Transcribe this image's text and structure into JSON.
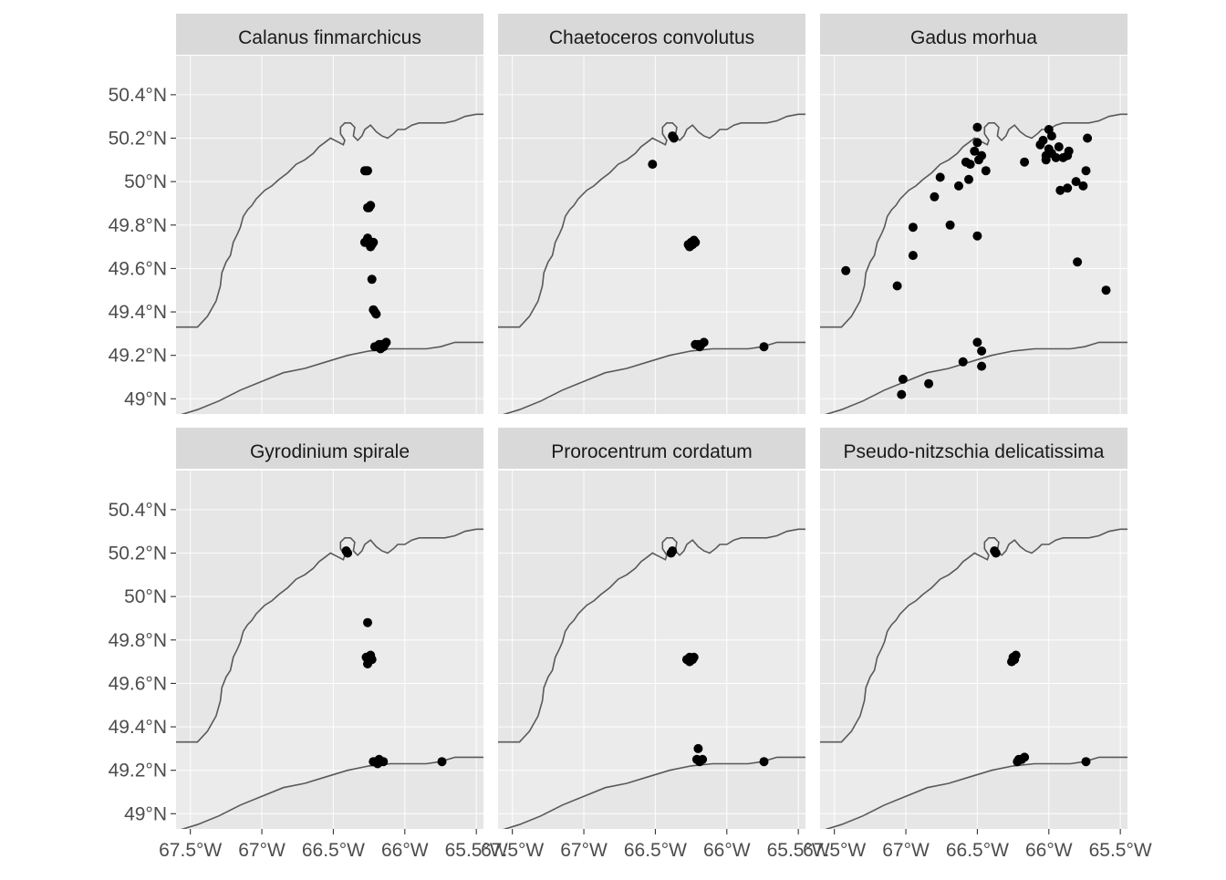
{
  "chart_data": {
    "type": "scatter",
    "title": "",
    "xlabel": "",
    "ylabel": "",
    "xlim": [
      -67.6,
      -65.45
    ],
    "ylim": [
      48.93,
      50.58
    ],
    "grid": true,
    "x_ticks": [
      {
        "value": -67.5,
        "label": "67.5°W"
      },
      {
        "value": -67.0,
        "label": "67°W"
      },
      {
        "value": -66.5,
        "label": "66.5°W"
      },
      {
        "value": -66.0,
        "label": "66°W"
      },
      {
        "value": -65.5,
        "label": "65.5°W"
      }
    ],
    "y_ticks": [
      {
        "value": 49.0,
        "label": "49°N"
      },
      {
        "value": 49.2,
        "label": "49.2°N"
      },
      {
        "value": 49.4,
        "label": "49.4°N"
      },
      {
        "value": 49.6,
        "label": "49.6°N"
      },
      {
        "value": 49.8,
        "label": "49.8°N"
      },
      {
        "value": 50.0,
        "label": "50°N"
      },
      {
        "value": 50.2,
        "label": "50.2°N"
      },
      {
        "value": 50.4,
        "label": "50.4°N"
      }
    ],
    "colors": {
      "panel_bg": "#ebebeb",
      "land": "#e6e6e6",
      "coast": "#595959",
      "strip_bg": "#d9d9d9",
      "point": "#000000",
      "grid": "#ffffff"
    },
    "coastlines": {
      "north": [
        [
          -67.6,
          49.33
        ],
        [
          -67.45,
          49.33
        ],
        [
          -67.38,
          49.38
        ],
        [
          -67.32,
          49.45
        ],
        [
          -67.29,
          49.52
        ],
        [
          -67.28,
          49.58
        ],
        [
          -67.25,
          49.63
        ],
        [
          -67.22,
          49.66
        ],
        [
          -67.2,
          49.72
        ],
        [
          -67.17,
          49.76
        ],
        [
          -67.15,
          49.79
        ],
        [
          -67.13,
          49.84
        ],
        [
          -67.1,
          49.87
        ],
        [
          -67.07,
          49.89
        ],
        [
          -67.04,
          49.92
        ],
        [
          -66.98,
          49.96
        ],
        [
          -66.93,
          49.98
        ],
        [
          -66.88,
          50.01
        ],
        [
          -66.82,
          50.04
        ],
        [
          -66.76,
          50.08
        ],
        [
          -66.7,
          50.1
        ],
        [
          -66.64,
          50.13
        ],
        [
          -66.6,
          50.16
        ],
        [
          -66.56,
          50.18
        ],
        [
          -66.52,
          50.2
        ],
        [
          -66.49,
          50.19
        ],
        [
          -66.46,
          50.18
        ],
        [
          -66.43,
          50.17
        ],
        [
          -66.42,
          50.19
        ],
        [
          -66.45,
          50.22
        ],
        [
          -66.45,
          50.25
        ],
        [
          -66.42,
          50.27
        ],
        [
          -66.38,
          50.27
        ],
        [
          -66.35,
          50.25
        ],
        [
          -66.36,
          50.21
        ],
        [
          -66.33,
          50.19
        ],
        [
          -66.3,
          50.21
        ],
        [
          -66.28,
          50.24
        ],
        [
          -66.24,
          50.26
        ],
        [
          -66.2,
          50.23
        ],
        [
          -66.16,
          50.21
        ],
        [
          -66.12,
          50.2
        ],
        [
          -66.08,
          50.22
        ],
        [
          -66.05,
          50.24
        ],
        [
          -66.0,
          50.24
        ],
        [
          -65.95,
          50.26
        ],
        [
          -65.9,
          50.27
        ],
        [
          -65.82,
          50.27
        ],
        [
          -65.72,
          50.27
        ],
        [
          -65.65,
          50.28
        ],
        [
          -65.58,
          50.3
        ],
        [
          -65.5,
          50.31
        ],
        [
          -65.45,
          50.31
        ]
      ],
      "south": [
        [
          -67.6,
          48.92
        ],
        [
          -67.45,
          48.95
        ],
        [
          -67.3,
          48.99
        ],
        [
          -67.15,
          49.04
        ],
        [
          -67.0,
          49.08
        ],
        [
          -66.85,
          49.12
        ],
        [
          -66.7,
          49.14
        ],
        [
          -66.55,
          49.17
        ],
        [
          -66.4,
          49.2
        ],
        [
          -66.25,
          49.22
        ],
        [
          -66.1,
          49.23
        ],
        [
          -65.95,
          49.23
        ],
        [
          -65.85,
          49.23
        ],
        [
          -65.75,
          49.24
        ],
        [
          -65.65,
          49.26
        ],
        [
          -65.55,
          49.26
        ],
        [
          -65.45,
          49.26
        ]
      ]
    },
    "facets": [
      {
        "name": "Calanus finmarchicus",
        "points": [
          [
            -66.27,
            50.05
          ],
          [
            -66.28,
            50.05
          ],
          [
            -66.26,
            50.05
          ],
          [
            -66.25,
            49.88
          ],
          [
            -66.24,
            49.89
          ],
          [
            -66.26,
            49.88
          ],
          [
            -66.25,
            49.72
          ],
          [
            -66.27,
            49.72
          ],
          [
            -66.23,
            49.71
          ],
          [
            -66.26,
            49.74
          ],
          [
            -66.24,
            49.7
          ],
          [
            -66.22,
            49.72
          ],
          [
            -66.28,
            49.72
          ],
          [
            -66.23,
            49.55
          ],
          [
            -66.21,
            49.4
          ],
          [
            -66.2,
            49.39
          ],
          [
            -66.22,
            49.41
          ],
          [
            -66.21,
            49.24
          ],
          [
            -66.19,
            49.24
          ],
          [
            -66.18,
            49.25
          ],
          [
            -66.16,
            49.25
          ],
          [
            -66.14,
            49.25
          ],
          [
            -66.17,
            49.23
          ],
          [
            -66.15,
            49.24
          ],
          [
            -66.13,
            49.26
          ]
        ]
      },
      {
        "name": "Chaetoceros convolutus",
        "points": [
          [
            -66.38,
            50.21
          ],
          [
            -66.37,
            50.2
          ],
          [
            -66.52,
            50.08
          ],
          [
            -66.25,
            49.72
          ],
          [
            -66.27,
            49.71
          ],
          [
            -66.23,
            49.73
          ],
          [
            -66.26,
            49.7
          ],
          [
            -66.24,
            49.71
          ],
          [
            -66.22,
            49.72
          ],
          [
            -66.2,
            49.25
          ],
          [
            -66.18,
            49.25
          ],
          [
            -66.22,
            49.25
          ],
          [
            -66.16,
            49.26
          ],
          [
            -66.19,
            49.24
          ],
          [
            -65.74,
            49.24
          ]
        ]
      },
      {
        "name": "Gadus morhua",
        "points": [
          [
            -67.42,
            49.59
          ],
          [
            -67.06,
            49.52
          ],
          [
            -66.95,
            49.66
          ],
          [
            -66.95,
            49.79
          ],
          [
            -66.8,
            49.93
          ],
          [
            -66.76,
            50.02
          ],
          [
            -66.69,
            49.8
          ],
          [
            -66.63,
            49.98
          ],
          [
            -66.58,
            50.09
          ],
          [
            -66.55,
            50.08
          ],
          [
            -66.56,
            50.01
          ],
          [
            -66.52,
            50.14
          ],
          [
            -66.5,
            50.25
          ],
          [
            -66.5,
            50.18
          ],
          [
            -66.49,
            50.1
          ],
          [
            -66.47,
            50.12
          ],
          [
            -66.44,
            50.05
          ],
          [
            -66.5,
            49.75
          ],
          [
            -66.5,
            49.26
          ],
          [
            -66.47,
            49.22
          ],
          [
            -66.47,
            49.15
          ],
          [
            -66.6,
            49.17
          ],
          [
            -66.84,
            49.07
          ],
          [
            -67.02,
            49.09
          ],
          [
            -67.03,
            49.02
          ],
          [
            -66.17,
            50.09
          ],
          [
            -66.06,
            50.17
          ],
          [
            -66.04,
            50.19
          ],
          [
            -66.02,
            50.12
          ],
          [
            -66.0,
            50.15
          ],
          [
            -65.98,
            50.21
          ],
          [
            -66.0,
            50.24
          ],
          [
            -66.02,
            50.1
          ],
          [
            -65.98,
            50.13
          ],
          [
            -65.95,
            50.11
          ],
          [
            -65.93,
            50.16
          ],
          [
            -65.9,
            50.11
          ],
          [
            -65.87,
            50.12
          ],
          [
            -65.86,
            50.14
          ],
          [
            -65.92,
            49.96
          ],
          [
            -65.87,
            49.97
          ],
          [
            -65.81,
            50.0
          ],
          [
            -65.76,
            49.98
          ],
          [
            -65.74,
            50.05
          ],
          [
            -65.73,
            50.2
          ],
          [
            -65.8,
            49.63
          ],
          [
            -65.6,
            49.5
          ]
        ]
      },
      {
        "name": "Gyrodinium spirale",
        "points": [
          [
            -66.4,
            50.2
          ],
          [
            -66.41,
            50.21
          ],
          [
            -66.26,
            49.88
          ],
          [
            -66.25,
            49.72
          ],
          [
            -66.27,
            49.72
          ],
          [
            -66.23,
            49.71
          ],
          [
            -66.26,
            49.69
          ],
          [
            -66.24,
            49.73
          ],
          [
            -66.2,
            49.24
          ],
          [
            -66.22,
            49.24
          ],
          [
            -66.18,
            49.25
          ],
          [
            -66.15,
            49.24
          ],
          [
            -66.19,
            49.23
          ],
          [
            -65.74,
            49.24
          ]
        ]
      },
      {
        "name": "Prorocentrum cordatum",
        "points": [
          [
            -66.38,
            50.21
          ],
          [
            -66.39,
            50.2
          ],
          [
            -66.26,
            49.72
          ],
          [
            -66.28,
            49.71
          ],
          [
            -66.24,
            49.71
          ],
          [
            -66.26,
            49.7
          ],
          [
            -66.23,
            49.72
          ],
          [
            -66.2,
            49.3
          ],
          [
            -66.21,
            49.25
          ],
          [
            -66.19,
            49.24
          ],
          [
            -66.17,
            49.25
          ],
          [
            -65.74,
            49.24
          ]
        ]
      },
      {
        "name": "Pseudo-nitzschia delicatissima",
        "points": [
          [
            -66.38,
            50.21
          ],
          [
            -66.37,
            50.2
          ],
          [
            -66.25,
            49.72
          ],
          [
            -66.26,
            49.7
          ],
          [
            -66.24,
            49.71
          ],
          [
            -66.23,
            49.73
          ],
          [
            -66.21,
            49.25
          ],
          [
            -66.19,
            49.25
          ],
          [
            -66.17,
            49.26
          ],
          [
            -66.22,
            49.24
          ],
          [
            -65.74,
            49.24
          ]
        ]
      }
    ]
  }
}
